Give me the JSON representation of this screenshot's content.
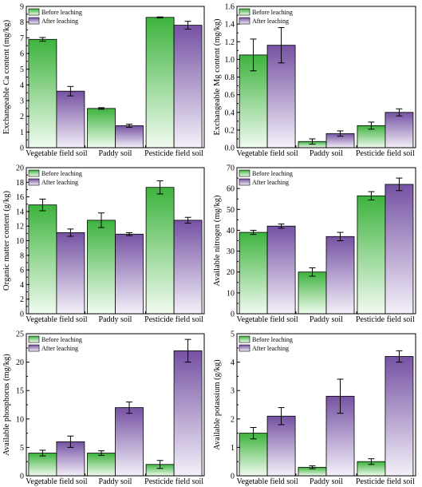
{
  "legend": {
    "before": "Before leaching",
    "after": "After leaching"
  },
  "colors": {
    "before_top": "#3db33d",
    "before_bottom": "#f1fbf0",
    "after_top": "#7552a3",
    "after_bottom": "#f4f0f9"
  },
  "chart_data": [
    {
      "type": "bar",
      "ylabel": "Exchangeable Ca content (mg/kg)",
      "categories": [
        "Vegetable field soil",
        "Paddy soil",
        "Pesticide field soil"
      ],
      "ylim": [
        0,
        9
      ],
      "ytick_step": 1,
      "yticks": [
        "0",
        "1",
        "2",
        "3",
        "4",
        "5",
        "6",
        "7",
        "8",
        "9"
      ],
      "legend_placement": "top-left",
      "grid": false,
      "series": [
        {
          "name": "Before leaching",
          "values": [
            6.9,
            2.5,
            8.3
          ],
          "errors": [
            0.12,
            0.05,
            0.03
          ]
        },
        {
          "name": "After leaching",
          "values": [
            3.6,
            1.4,
            7.8
          ],
          "errors": [
            0.3,
            0.1,
            0.25
          ]
        }
      ]
    },
    {
      "type": "bar",
      "ylabel": "Exchangeable Mg content (mg/kg)",
      "categories": [
        "Vegetable field soil",
        "Paddy soil",
        "Pesticide field soil"
      ],
      "ylim": [
        0,
        1.6
      ],
      "ytick_step": 0.2,
      "yticks": [
        "0.0",
        "0.2",
        "0.4",
        "0.6",
        "0.8",
        "1.0",
        "1.2",
        "1.4",
        "1.6"
      ],
      "legend_placement": "top-left",
      "grid": false,
      "series": [
        {
          "name": "Before leaching",
          "values": [
            1.05,
            0.07,
            0.25
          ],
          "errors": [
            0.18,
            0.03,
            0.04
          ]
        },
        {
          "name": "After leaching",
          "values": [
            1.16,
            0.16,
            0.4
          ],
          "errors": [
            0.2,
            0.03,
            0.04
          ]
        }
      ]
    },
    {
      "type": "bar",
      "ylabel": "Organic matter content (g/kg)",
      "categories": [
        "Vegetable field soil",
        "Paddy soil",
        "Pesticide field soil"
      ],
      "ylim": [
        0,
        20
      ],
      "ytick_step": 2,
      "yticks": [
        "0",
        "2",
        "4",
        "6",
        "8",
        "10",
        "12",
        "14",
        "16",
        "18",
        "20"
      ],
      "legend_placement": "top-left",
      "grid": false,
      "series": [
        {
          "name": "Before leaching",
          "values": [
            14.9,
            12.8,
            17.3
          ],
          "errors": [
            0.8,
            1.0,
            0.9
          ]
        },
        {
          "name": "After leaching",
          "values": [
            11.1,
            10.9,
            12.8
          ],
          "errors": [
            0.5,
            0.2,
            0.4
          ]
        }
      ]
    },
    {
      "type": "bar",
      "ylabel": "Available nitrogen (mg/kg)",
      "categories": [
        "Vegetable field soil",
        "Paddy soil",
        "Pesticide field soil"
      ],
      "ylim": [
        0,
        70
      ],
      "ytick_step": 10,
      "yticks": [
        "0",
        "10",
        "20",
        "30",
        "40",
        "50",
        "60",
        "70"
      ],
      "legend_placement": "top-left",
      "grid": false,
      "series": [
        {
          "name": "Before leaching",
          "values": [
            39,
            20,
            56.5
          ],
          "errors": [
            1.0,
            2.0,
            2.0
          ]
        },
        {
          "name": "After leaching",
          "values": [
            42,
            37,
            62
          ],
          "errors": [
            1.0,
            2.0,
            3.0
          ]
        }
      ]
    },
    {
      "type": "bar",
      "ylabel": "Available phosphorus (mg/kg)",
      "categories": [
        "Vegetable field soil",
        "Paddy soil",
        "Pesticide field soil"
      ],
      "ylim": [
        0,
        25
      ],
      "ytick_step": 5,
      "yticks": [
        "0",
        "5",
        "10",
        "15",
        "20",
        "25"
      ],
      "legend_placement": "top-left",
      "grid": false,
      "series": [
        {
          "name": "Before leaching",
          "values": [
            4,
            4,
            2
          ],
          "errors": [
            0.5,
            0.4,
            0.7
          ]
        },
        {
          "name": "After leaching",
          "values": [
            6,
            12,
            22
          ],
          "errors": [
            1.0,
            1.0,
            2.0
          ]
        }
      ]
    },
    {
      "type": "bar",
      "ylabel": "Available potassium (g/kg)",
      "categories": [
        "Vegetable field soil",
        "Paddy soil",
        "Pesticide field soil"
      ],
      "ylim": [
        0,
        5
      ],
      "ytick_step": 1,
      "yticks": [
        "0",
        "1",
        "2",
        "3",
        "4",
        "5"
      ],
      "legend_placement": "top-left",
      "grid": false,
      "series": [
        {
          "name": "Before leaching",
          "values": [
            1.5,
            0.3,
            0.5
          ],
          "errors": [
            0.2,
            0.05,
            0.1
          ]
        },
        {
          "name": "After leaching",
          "values": [
            2.1,
            2.8,
            4.2
          ],
          "errors": [
            0.3,
            0.6,
            0.2
          ]
        }
      ]
    }
  ]
}
